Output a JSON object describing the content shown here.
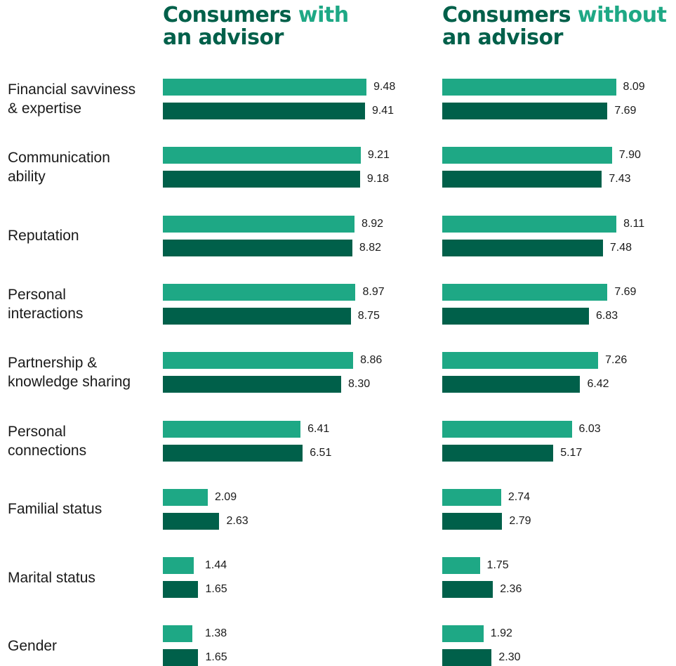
{
  "panels": [
    {
      "title_prefix": "Consumers ",
      "title_accent": "with",
      "title_suffix": "an advisor"
    },
    {
      "title_prefix": "Consumers ",
      "title_accent": "without",
      "title_suffix": "an advisor"
    }
  ],
  "colors": {
    "light_bar": "#1ea885",
    "dark_bar": "#00604a"
  },
  "chart_data": [
    {
      "type": "bar",
      "orientation": "horizontal",
      "title": "Consumers with an advisor",
      "categories": [
        "Financial savviness & expertise",
        "Communication ability",
        "Reputation",
        "Personal interactions",
        "Partnership & knowledge sharing",
        "Personal connections",
        "Familial status",
        "Marital status",
        "Gender"
      ],
      "series": [
        {
          "values": [
            9.48,
            9.21,
            8.92,
            8.97,
            8.86,
            6.41,
            2.09,
            1.44,
            1.38
          ],
          "color": "#1ea885",
          "value_labels": [
            "9.48",
            "9.21",
            "8.92",
            "8.97",
            "8.86",
            "6.41",
            "2.09",
            "1.44",
            "1.38"
          ]
        },
        {
          "values": [
            9.41,
            9.18,
            8.82,
            8.75,
            8.3,
            6.51,
            2.63,
            1.65,
            1.65
          ],
          "color": "#00604a",
          "value_labels": [
            "9.41",
            "9.18",
            "8.82",
            "8.75",
            "8.30",
            "6.51",
            "2.63",
            "1.65",
            "1.65"
          ]
        }
      ],
      "xlim": [
        0,
        10
      ],
      "grid": false,
      "legend": "none"
    },
    {
      "type": "bar",
      "orientation": "horizontal",
      "title": "Consumers without an advisor",
      "categories": [
        "Financial savviness & expertise",
        "Communication ability",
        "Reputation",
        "Personal interactions",
        "Partnership & knowledge sharing",
        "Personal connections",
        "Familial status",
        "Marital status",
        "Gender"
      ],
      "series": [
        {
          "values": [
            8.09,
            7.9,
            8.11,
            7.69,
            7.26,
            6.03,
            2.74,
            1.75,
            1.92
          ],
          "color": "#1ea885",
          "value_labels": [
            "8.09",
            "7.90",
            "8.11",
            "7.69",
            "7.26",
            "6.03",
            "2.74",
            "1.75",
            "1.92"
          ]
        },
        {
          "values": [
            7.69,
            7.43,
            7.48,
            6.83,
            6.42,
            5.17,
            2.79,
            2.36,
            2.3
          ],
          "color": "#00604a",
          "value_labels": [
            "7.69",
            "7.43",
            "7.48",
            "6.83",
            "6.42",
            "5.17",
            "2.79",
            "2.36",
            "2.30"
          ]
        }
      ],
      "xlim": [
        0,
        10
      ],
      "grid": false,
      "legend": "none"
    }
  ],
  "category_labels": [
    [
      "Financial savviness",
      "& expertise"
    ],
    [
      "Communication",
      "ability"
    ],
    [
      "Reputation"
    ],
    [
      "Personal",
      "interactions"
    ],
    [
      "Partnership &",
      "knowledge sharing"
    ],
    [
      "Personal",
      "connections"
    ],
    [
      "Familial status"
    ],
    [
      "Marital status"
    ],
    [
      "Gender"
    ]
  ]
}
